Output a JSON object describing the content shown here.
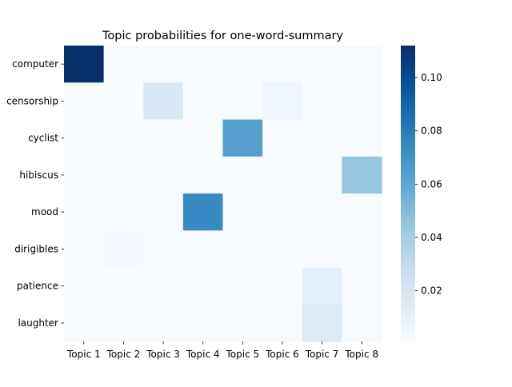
{
  "chart_data": {
    "type": "heatmap",
    "title": "Topic probabilities for one-word-summary",
    "x_categories": [
      "Topic 1",
      "Topic 2",
      "Topic 3",
      "Topic 4",
      "Topic 5",
      "Topic 6",
      "Topic 7",
      "Topic 8"
    ],
    "y_categories": [
      "computer",
      "censorship",
      "cyclist",
      "hibiscus",
      "mood",
      "dirigibles",
      "patience",
      "laughter"
    ],
    "values": [
      [
        0.112,
        0.001,
        0.001,
        0.001,
        0.001,
        0.001,
        0.001,
        0.001
      ],
      [
        0.001,
        0.001,
        0.017,
        0.001,
        0.001,
        0.006,
        0.001,
        0.001
      ],
      [
        0.001,
        0.001,
        0.001,
        0.001,
        0.064,
        0.001,
        0.001,
        0.001
      ],
      [
        0.001,
        0.001,
        0.001,
        0.001,
        0.001,
        0.001,
        0.001,
        0.045
      ],
      [
        0.001,
        0.001,
        0.001,
        0.074,
        0.001,
        0.001,
        0.001,
        0.001
      ],
      [
        0.001,
        0.003,
        0.001,
        0.001,
        0.001,
        0.001,
        0.001,
        0.001
      ],
      [
        0.001,
        0.001,
        0.001,
        0.001,
        0.001,
        0.001,
        0.011,
        0.001
      ],
      [
        0.001,
        0.001,
        0.001,
        0.001,
        0.001,
        0.001,
        0.016,
        0.001
      ]
    ],
    "colormap": "Blues",
    "vmin": 0.001,
    "vmax": 0.112,
    "colorbar_ticks": [
      0.02,
      0.04,
      0.06,
      0.08,
      0.1
    ],
    "colorbar_tick_labels": [
      "0.02",
      "0.04",
      "0.06",
      "0.08",
      "0.10"
    ],
    "grid": false,
    "colorbar_position": "right"
  }
}
